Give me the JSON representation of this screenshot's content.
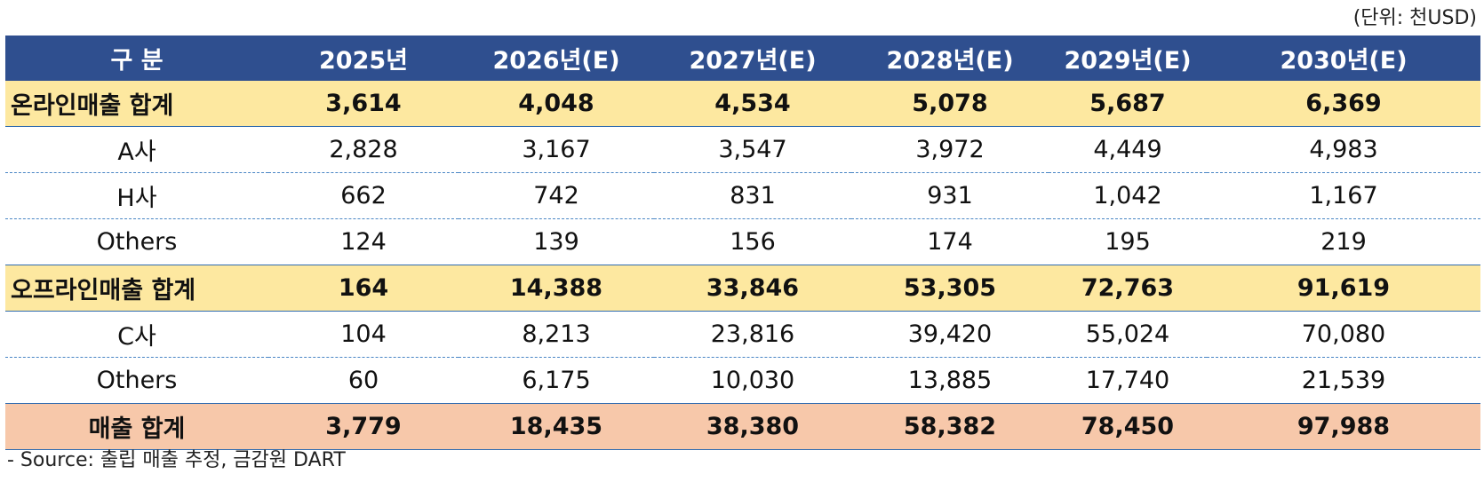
{
  "unit_label": "(단위: 천USD)",
  "header": [
    "구  분",
    "2025년",
    "2026년(E)",
    "2027년(E)",
    "2028년(E)",
    "2029년(E)",
    "2030년(E)"
  ],
  "rows": [
    {
      "kind": "subtotal",
      "cells": [
        "온라인매출 합계",
        "3,614",
        "4,048",
        "4,534",
        "5,078",
        "5,687",
        "6,369"
      ]
    },
    {
      "kind": "detail",
      "cells": [
        "A사",
        "2,828",
        "3,167",
        "3,547",
        "3,972",
        "4,449",
        "4,983"
      ]
    },
    {
      "kind": "detail",
      "cells": [
        "H사",
        "662",
        "742",
        "831",
        "931",
        "1,042",
        "1,167"
      ]
    },
    {
      "kind": "detail",
      "cells": [
        "Others",
        "124",
        "139",
        "156",
        "174",
        "195",
        "219"
      ]
    },
    {
      "kind": "subtotal",
      "cells": [
        "오프라인매출 합계",
        "164",
        "14,388",
        "33,846",
        "53,305",
        "72,763",
        "91,619"
      ]
    },
    {
      "kind": "detail",
      "cells": [
        "C사",
        "104",
        "8,213",
        "23,816",
        "39,420",
        "55,024",
        "70,080"
      ]
    },
    {
      "kind": "detail",
      "cells": [
        "Others",
        "60",
        "6,175",
        "10,030",
        "13,885",
        "17,740",
        "21,539"
      ]
    },
    {
      "kind": "total",
      "cells": [
        "매출 합계",
        "3,779",
        "18,435",
        "38,380",
        "58,382",
        "78,450",
        "97,988"
      ]
    }
  ],
  "source_note": "- Source: 출립 매출 추정, 금감원 DART"
}
